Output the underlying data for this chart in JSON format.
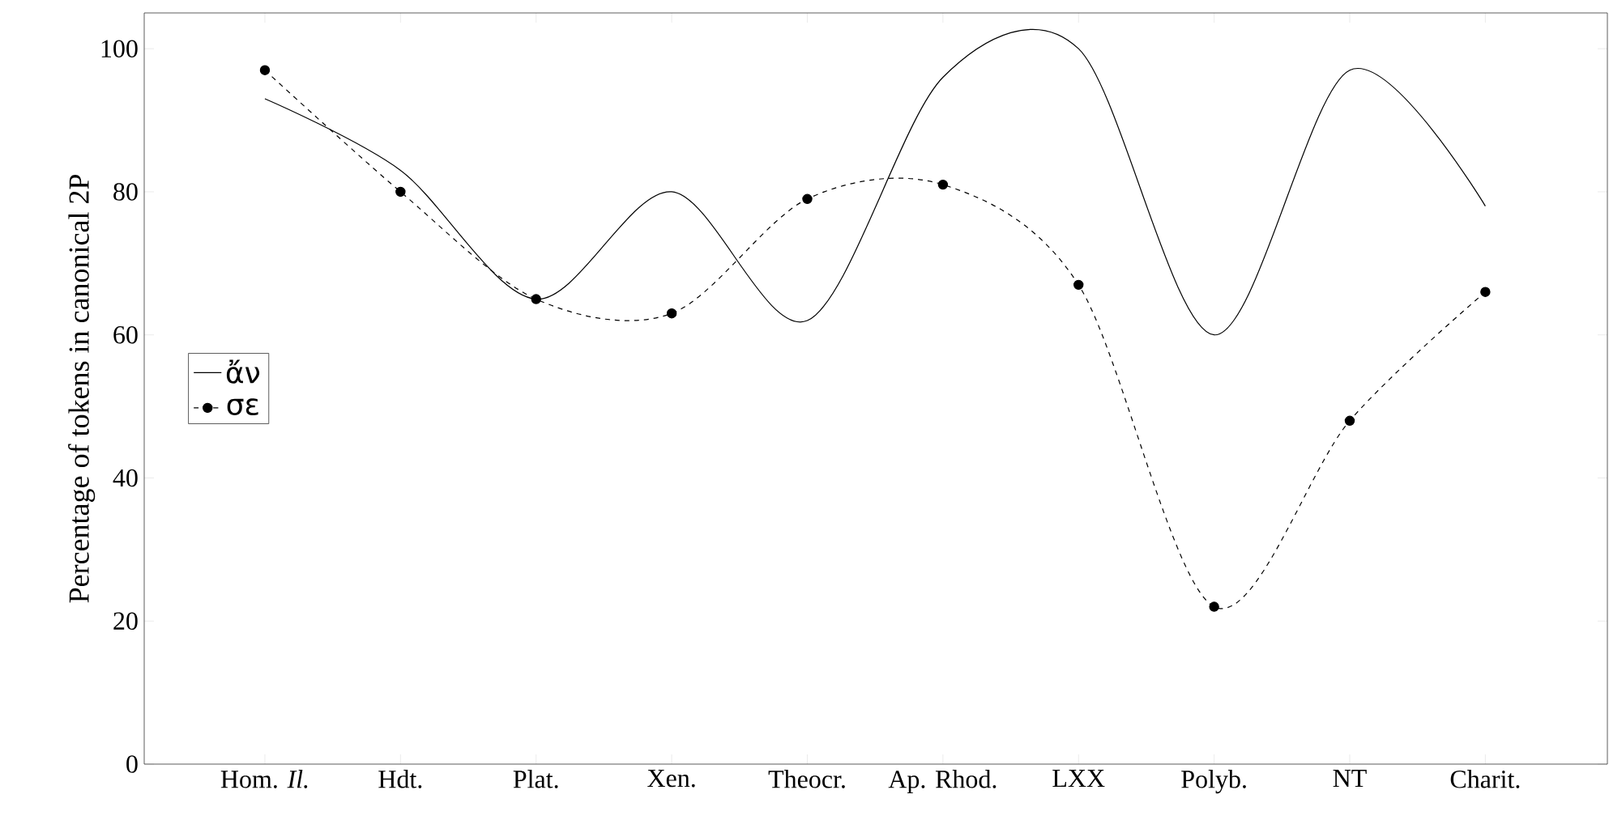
{
  "chart_data": {
    "type": "line",
    "ylabel": "Percentage of tokens in canonical 2P",
    "categories": [
      "Hom. *Il.*",
      "Hdt.",
      "Plat.",
      "Xen.",
      "Theocr.",
      "Ap. Rhod.",
      "LXX",
      "Polyb.",
      "NT",
      "Charit."
    ],
    "series": [
      {
        "name": "ἄν",
        "color": "#000000",
        "marker": "none",
        "line_style": "solid",
        "values": [
          93,
          83,
          65,
          80,
          62,
          96,
          100,
          60,
          97,
          78
        ]
      },
      {
        "name": "σε",
        "color": "#000000",
        "marker": "circle",
        "line_style": "dashed",
        "values": [
          97,
          80,
          65,
          63,
          79,
          81,
          67,
          22,
          48,
          66
        ]
      }
    ],
    "ylim": [
      0,
      105
    ],
    "yticks": [
      0,
      20,
      40,
      60,
      80,
      100
    ],
    "legend": "left",
    "grid": false
  }
}
